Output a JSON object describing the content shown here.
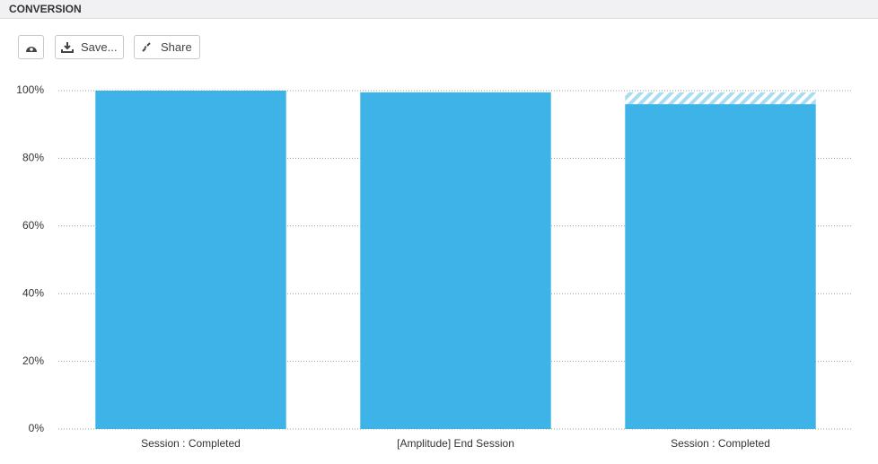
{
  "header": {
    "title": "CONVERSION"
  },
  "toolbar": {
    "save": "Save...",
    "share": "Share"
  },
  "chart_data": {
    "type": "stacked-bar",
    "categories": [
      "Session : Completed",
      "[Amplitude] End Session",
      "Session : Completed"
    ],
    "series": [
      {
        "color": "#3db3e8",
        "values": [
          100,
          99.5,
          96
        ]
      },
      {
        "color": "#a8dcf3",
        "pattern": "hatch",
        "values": [
          0,
          0,
          3.5
        ]
      }
    ],
    "ylim": [
      0,
      100
    ],
    "yticks": [
      {
        "value": 0,
        "label": "0%"
      },
      {
        "value": 20,
        "label": "20%"
      },
      {
        "value": 40,
        "label": "40%"
      },
      {
        "value": 60,
        "label": "60%"
      },
      {
        "value": 80,
        "label": "80%"
      },
      {
        "value": 100,
        "label": "100%"
      }
    ],
    "grid": true
  }
}
